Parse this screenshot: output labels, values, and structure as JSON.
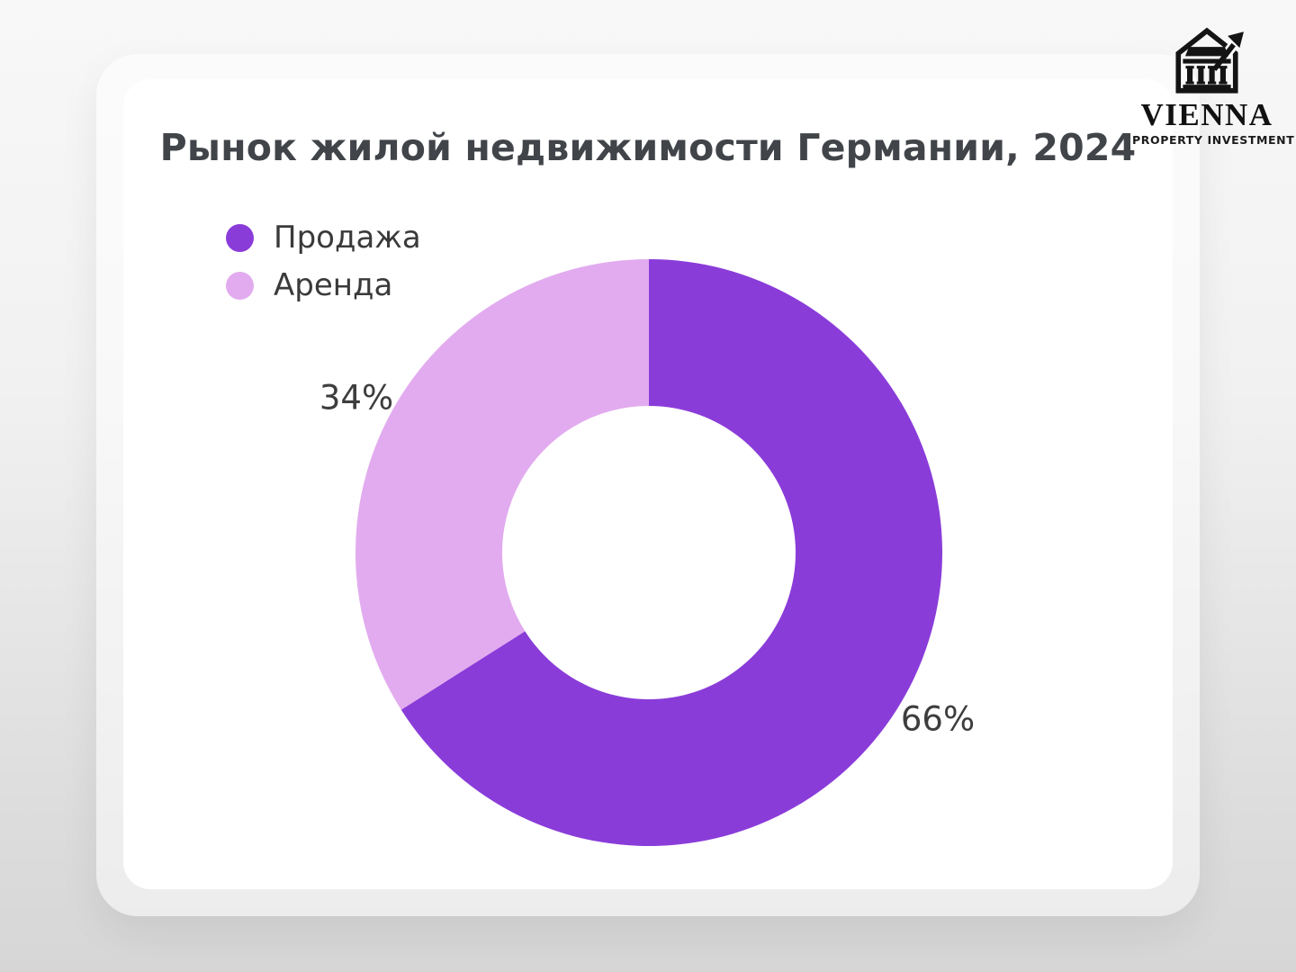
{
  "logo": {
    "brand": "VIENNA",
    "tagline": "PROPERTY INVESTMENT",
    "icon": "bank-building-growth-arrow-icon",
    "color": "#141414"
  },
  "theme": {
    "page_gradient_top": "#f8f8f8",
    "page_gradient_bottom": "#d6d6d6",
    "card_bg": "#ffffff",
    "title_color": "#414449",
    "label_color": "#3d3d3d"
  },
  "chart_data": {
    "type": "pie",
    "style": "donut",
    "title": "Рынок жилой недвижимости Германии, 2024",
    "total": 100,
    "start_angle_deg": 0,
    "direction": "clockwise",
    "inner_radius_ratio": 0.5,
    "legend_position": "top-left",
    "segments": [
      {
        "label": "Продажа",
        "value_pct": 66,
        "display": "66%",
        "color": "#8a3cd9"
      },
      {
        "label": "Аренда",
        "value_pct": 34,
        "display": "34%",
        "color": "#e2abef"
      }
    ]
  }
}
